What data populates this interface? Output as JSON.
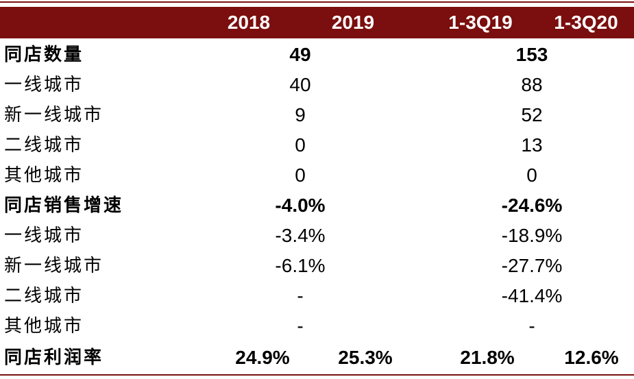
{
  "header": {
    "columns": [
      "",
      "2018",
      "2019",
      "1-3Q19",
      "1-3Q20"
    ]
  },
  "rows": [
    {
      "label": "同店数量",
      "c2018_19": "49",
      "c1_3q": "153"
    },
    {
      "label": "一线城市",
      "c2018_19": "40",
      "c1_3q": "88"
    },
    {
      "label": "新一线城市",
      "c2018_19": "9",
      "c1_3q": "52"
    },
    {
      "label": "二线城市",
      "c2018_19": "0",
      "c1_3q": "13"
    },
    {
      "label": "其他城市",
      "c2018_19": "0",
      "c1_3q": "0"
    },
    {
      "label": "同店销售增速",
      "c2018_19": "-4.0%",
      "c1_3q": "-24.6%"
    },
    {
      "label": "一线城市",
      "c2018_19": "-3.4%",
      "c1_3q": "-18.9%"
    },
    {
      "label": "新一线城市",
      "c2018_19": "-6.1%",
      "c1_3q": "-27.7%"
    },
    {
      "label": "二线城市",
      "c2018_19": "-",
      "c1_3q": "-41.4%"
    },
    {
      "label": "其他城市",
      "c2018_19": "-",
      "c1_3q": "-"
    }
  ],
  "margin_row": {
    "label": "同店利润率",
    "v2018": "24.9%",
    "v2019": "25.3%",
    "v1_3q19": "21.8%",
    "v1_3q20": "12.6%"
  },
  "colors": {
    "accent": "#7b0e0e",
    "header_text": "#ffffff"
  }
}
